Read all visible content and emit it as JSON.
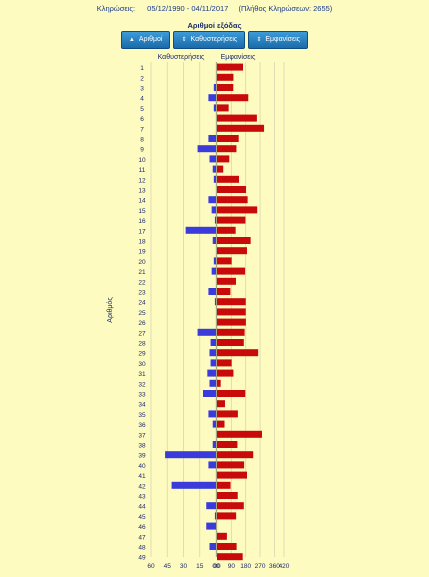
{
  "header": {
    "draws_label": "Κληρώσεις:",
    "date_range": "05/12/1990 - 04/11/2017",
    "draw_count": "(Πλήθος Κληρώσεων: 2655)"
  },
  "subtitle": "Αριθμοί εξόδας",
  "sort_buttons": [
    {
      "label": "Αριθμοί",
      "icon": "arrow-up-icon",
      "arrow": "▲"
    },
    {
      "label": "Καθυστερήσεις",
      "icon": "arrow-up-down-icon",
      "arrow": "⇕"
    },
    {
      "label": "Εμφανίσεις",
      "icon": "arrow-up-down-icon",
      "arrow": "⇕"
    }
  ],
  "colors": {
    "background": "#fdfbc0",
    "delay_bar": "#3b3bdc",
    "appearance_bar": "#c80a0a",
    "button": "#2a82c4",
    "text": "#1a2a6c"
  },
  "chart_data": {
    "type": "bar",
    "orientation": "horizontal-diverging",
    "ylabel": "Αριθμός",
    "left_series_label": "Καθυστερήσεις",
    "right_series_label": "Εμφανίσεις",
    "left_ticks": [
      "60",
      "45",
      "30",
      "15",
      "00"
    ],
    "right_ticks": [
      "00",
      "90",
      "180",
      "270",
      "360",
      "420"
    ],
    "left_range": [
      0,
      60
    ],
    "right_range": [
      0,
      420
    ],
    "grid": true,
    "categories": [
      "1",
      "2",
      "3",
      "4",
      "5",
      "6",
      "7",
      "8",
      "9",
      "10",
      "11",
      "12",
      "13",
      "14",
      "15",
      "16",
      "17",
      "18",
      "19",
      "20",
      "21",
      "22",
      "23",
      "24",
      "25",
      "26",
      "27",
      "28",
      "29",
      "30",
      "31",
      "32",
      "33",
      "34",
      "35",
      "36",
      "37",
      "38",
      "39",
      "40",
      "41",
      "42",
      "43",
      "44",
      "45",
      "46",
      "47",
      "48",
      "49"
    ],
    "series": [
      {
        "name": "Καθυστερήσεις",
        "values": [
          0,
          0,
          2,
          7,
          2,
          0,
          0,
          7,
          17,
          6,
          3,
          2,
          0,
          7,
          4,
          1,
          28,
          3,
          0,
          2,
          4,
          0,
          7,
          1,
          0,
          0,
          17,
          5,
          6,
          5,
          8,
          6,
          12,
          0,
          7,
          3,
          0,
          3,
          47,
          7,
          0,
          41,
          0,
          9,
          1,
          9,
          0,
          6,
          0
        ]
      },
      {
        "name": "Εμφανίσεις",
        "values": [
          163,
          103,
          102,
          196,
          73,
          250,
          295,
          136,
          122,
          77,
          39,
          138,
          182,
          192,
          252,
          178,
          117,
          211,
          188,
          92,
          176,
          119,
          84,
          180,
          180,
          181,
          173,
          168,
          258,
          92,
          103,
          23,
          177,
          50,
          131,
          47,
          282,
          128,
          227,
          170,
          188,
          85,
          130,
          168,
          120,
          0,
          62,
          123,
          161
        ]
      }
    ]
  }
}
